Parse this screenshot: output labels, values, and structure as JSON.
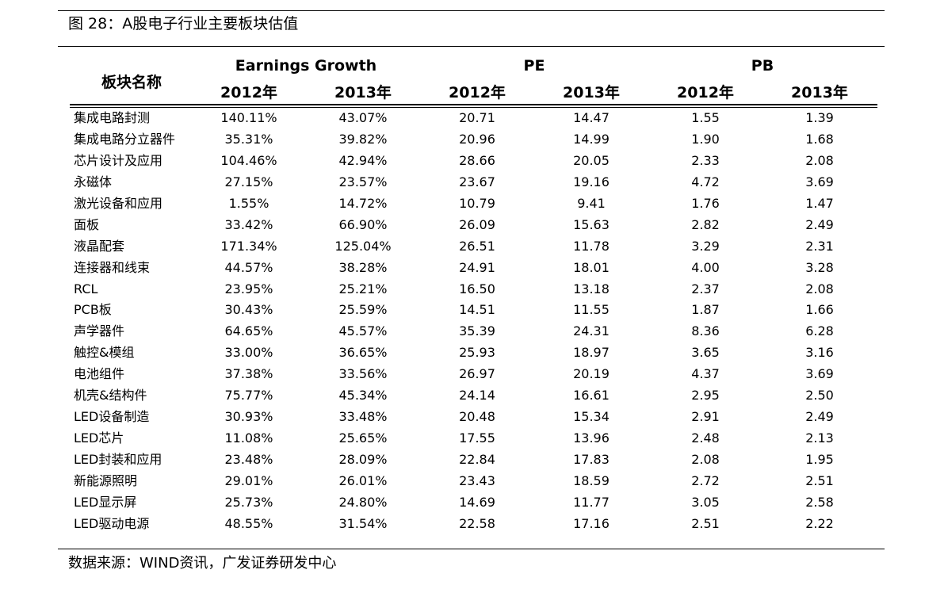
{
  "caption": {
    "figure_no": "图 28：",
    "title": "A股电子行业主要板块估值"
  },
  "table": {
    "name_header": "板块名称",
    "groups": [
      "Earnings Growth",
      "PE",
      "PB"
    ],
    "years": [
      "2012年",
      "2013年",
      "2012年",
      "2013年",
      "2012年",
      "2013年"
    ],
    "rows": [
      {
        "name": "集成电路封测",
        "values": [
          "140.11%",
          "43.07%",
          "20.71",
          "14.47",
          "1.55",
          "1.39"
        ]
      },
      {
        "name": "集成电路分立器件",
        "values": [
          "35.31%",
          "39.82%",
          "20.96",
          "14.99",
          "1.90",
          "1.68"
        ]
      },
      {
        "name": "芯片设计及应用",
        "values": [
          "104.46%",
          "42.94%",
          "28.66",
          "20.05",
          "2.33",
          "2.08"
        ]
      },
      {
        "name": "永磁体",
        "values": [
          "27.15%",
          "23.57%",
          "23.67",
          "19.16",
          "4.72",
          "3.69"
        ]
      },
      {
        "name": "激光设备和应用",
        "values": [
          "1.55%",
          "14.72%",
          "10.79",
          "9.41",
          "1.76",
          "1.47"
        ]
      },
      {
        "name": "面板",
        "values": [
          "33.42%",
          "66.90%",
          "26.09",
          "15.63",
          "2.82",
          "2.49"
        ]
      },
      {
        "name": "液晶配套",
        "values": [
          "171.34%",
          "125.04%",
          "26.51",
          "11.78",
          "3.29",
          "2.31"
        ]
      },
      {
        "name": "连接器和线束",
        "values": [
          "44.57%",
          "38.28%",
          "24.91",
          "18.01",
          "4.00",
          "3.28"
        ]
      },
      {
        "name": "RCL",
        "values": [
          "23.95%",
          "25.21%",
          "16.50",
          "13.18",
          "2.37",
          "2.08"
        ]
      },
      {
        "name": "PCB板",
        "values": [
          "30.43%",
          "25.59%",
          "14.51",
          "11.55",
          "1.87",
          "1.66"
        ]
      },
      {
        "name": "声学器件",
        "values": [
          "64.65%",
          "45.57%",
          "35.39",
          "24.31",
          "8.36",
          "6.28"
        ]
      },
      {
        "name": "触控&模组",
        "values": [
          "33.00%",
          "36.65%",
          "25.93",
          "18.97",
          "3.65",
          "3.16"
        ]
      },
      {
        "name": "电池组件",
        "values": [
          "37.38%",
          "33.56%",
          "26.97",
          "20.19",
          "4.37",
          "3.69"
        ]
      },
      {
        "name": "机壳&结构件",
        "values": [
          "75.77%",
          "45.34%",
          "24.14",
          "16.61",
          "2.95",
          "2.50"
        ]
      },
      {
        "name": "LED设备制造",
        "values": [
          "30.93%",
          "33.48%",
          "20.48",
          "15.34",
          "2.91",
          "2.49"
        ]
      },
      {
        "name": "LED芯片",
        "values": [
          "11.08%",
          "25.65%",
          "17.55",
          "13.96",
          "2.48",
          "2.13"
        ]
      },
      {
        "name": "LED封装和应用",
        "values": [
          "23.48%",
          "28.09%",
          "22.84",
          "17.83",
          "2.08",
          "1.95"
        ]
      },
      {
        "name": "新能源照明",
        "values": [
          "29.01%",
          "26.01%",
          "23.43",
          "18.59",
          "2.72",
          "2.51"
        ]
      },
      {
        "name": "LED显示屏",
        "values": [
          "25.73%",
          "24.80%",
          "14.69",
          "11.77",
          "3.05",
          "2.58"
        ]
      },
      {
        "name": "LED驱动电源",
        "values": [
          "48.55%",
          "31.54%",
          "22.58",
          "17.16",
          "2.51",
          "2.22"
        ]
      }
    ]
  },
  "source": "数据来源：WIND资讯，广发证券研发中心"
}
